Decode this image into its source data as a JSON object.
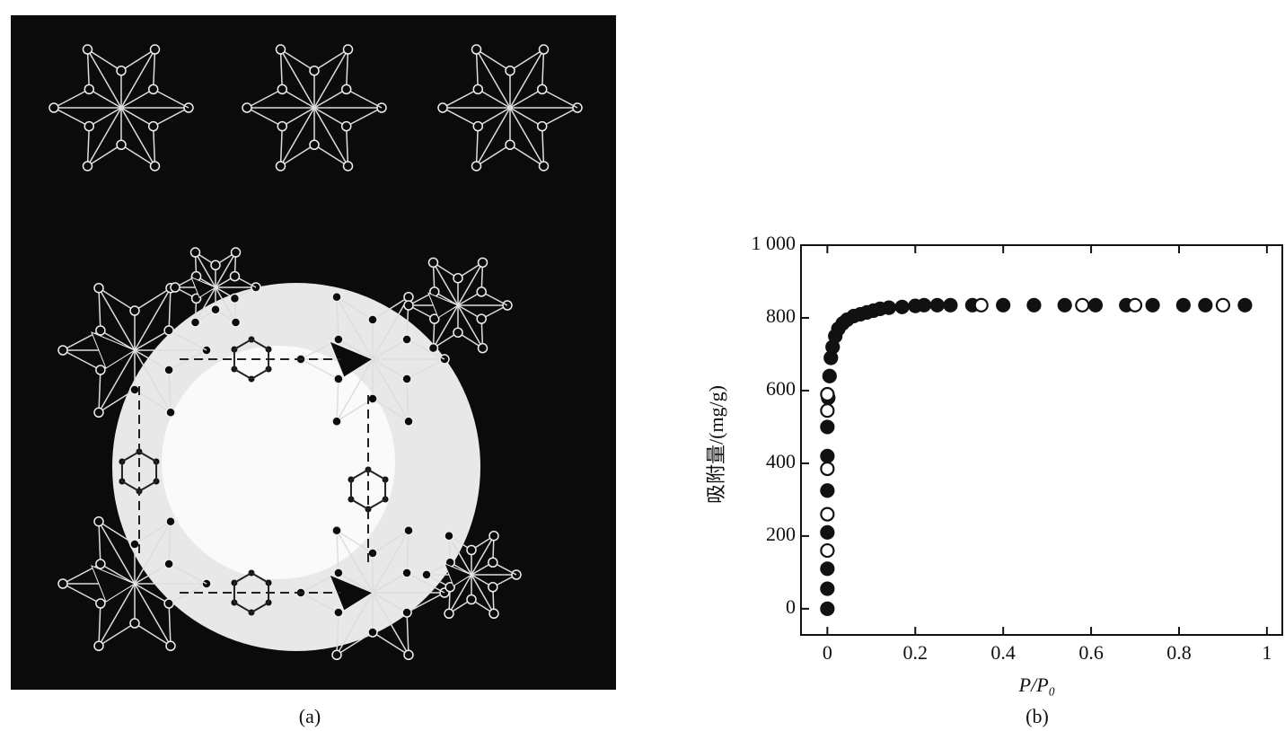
{
  "panel_a": {
    "caption": "(a)"
  },
  "chart_data": {
    "type": "scatter",
    "caption": "(b)",
    "x_label": "P/P₀",
    "y_label": "吸附量/(mg/g)",
    "xlim": [
      -0.06,
      1.035
    ],
    "ylim": [
      -72,
      1000
    ],
    "xticks": [
      0,
      0.2,
      0.4,
      0.6,
      0.8,
      1
    ],
    "yticks": [
      0,
      200,
      400,
      600,
      800,
      {
        "value": 1000,
        "label": "1 000"
      }
    ],
    "series": [
      {
        "color": "#111111",
        "filled": true,
        "x": [
          0,
          0,
          0,
          0,
          0,
          0,
          0,
          0.002,
          0.005,
          0.008,
          0.012,
          0.018,
          0.025,
          0.035,
          0.045,
          0.06,
          0.075,
          0.09,
          0.105,
          0.12,
          0.14,
          0.17,
          0.2,
          0.22,
          0.25,
          0.28,
          0.33,
          0.4,
          0.47,
          0.54,
          0.61,
          0.68,
          0.74,
          0.81,
          0.86,
          0.95
        ],
        "y": [
          0,
          55,
          110,
          210,
          325,
          420,
          500,
          580,
          640,
          690,
          720,
          750,
          770,
          785,
          795,
          805,
          810,
          815,
          820,
          825,
          828,
          830,
          833,
          835,
          835,
          835,
          835,
          835,
          835,
          835,
          835,
          835,
          835,
          835,
          835,
          835
        ]
      },
      {
        "color": "#111111",
        "filled": false,
        "x": [
          0,
          0,
          0,
          0,
          0,
          0.35,
          0.58,
          0.7,
          0.9
        ],
        "y": [
          160,
          260,
          385,
          545,
          590,
          835,
          835,
          835,
          835
        ]
      }
    ]
  }
}
